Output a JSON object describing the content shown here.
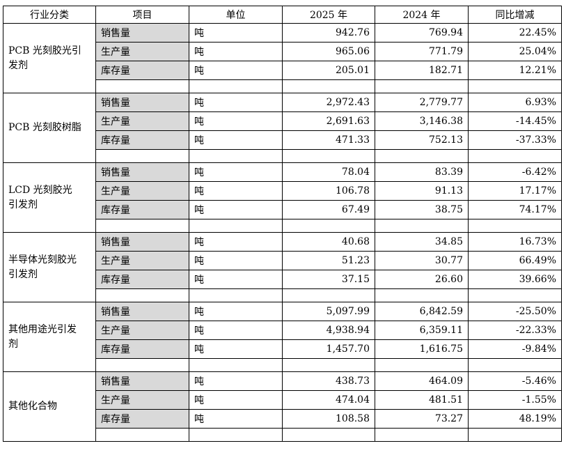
{
  "table": {
    "header": [
      "行业分类",
      "项目",
      "单位",
      "2025 年",
      "2024 年",
      "同比增减"
    ],
    "groups": [
      {
        "category": "PCB 光刻胶光引发剂",
        "rows": [
          [
            "销售量",
            "吨",
            "942.76",
            "769.94",
            "22.45%"
          ],
          [
            "生产量",
            "吨",
            "965.06",
            "771.79",
            "25.04%"
          ],
          [
            "库存量",
            "吨",
            "205.01",
            "182.71",
            "12.21%"
          ]
        ]
      },
      {
        "category": "PCB 光刻胶树脂",
        "rows": [
          [
            "销售量",
            "吨",
            "2,972.43",
            "2,779.77",
            "6.93%"
          ],
          [
            "生产量",
            "吨",
            "2,691.63",
            "3,146.38",
            "-14.45%"
          ],
          [
            "库存量",
            "吨",
            "471.33",
            "752.13",
            "-37.33%"
          ]
        ]
      },
      {
        "category": "LCD 光刻胶光引发剂",
        "rows": [
          [
            "销售量",
            "吨",
            "78.04",
            "83.39",
            "-6.42%"
          ],
          [
            "生产量",
            "吨",
            "106.78",
            "91.13",
            "17.17%"
          ],
          [
            "库存量",
            "吨",
            "67.49",
            "38.75",
            "74.17%"
          ]
        ]
      },
      {
        "category": "半导体光刻胶光引发剂",
        "rows": [
          [
            "销售量",
            "吨",
            "40.68",
            "34.85",
            "16.73%"
          ],
          [
            "生产量",
            "吨",
            "51.23",
            "30.77",
            "66.49%"
          ],
          [
            "库存量",
            "吨",
            "37.15",
            "26.60",
            "39.66%"
          ]
        ]
      },
      {
        "category": "其他用途光引发剂",
        "rows": [
          [
            "销售量",
            "吨",
            "5,097.99",
            "6,842.59",
            "-25.50%"
          ],
          [
            "生产量",
            "吨",
            "4,938.94",
            "6,359.11",
            "-22.33%"
          ],
          [
            "库存量",
            "吨",
            "1,457.70",
            "1,616.75",
            "-9.84%"
          ]
        ]
      },
      {
        "category": "其他化合物",
        "rows": [
          [
            "销售量",
            "吨",
            "438.73",
            "464.09",
            "-5.46%"
          ],
          [
            "生产量",
            "吨",
            "474.04",
            "481.51",
            "-1.55%"
          ],
          [
            "库存量",
            "吨",
            "108.58",
            "73.27",
            "48.19%"
          ]
        ]
      }
    ]
  }
}
